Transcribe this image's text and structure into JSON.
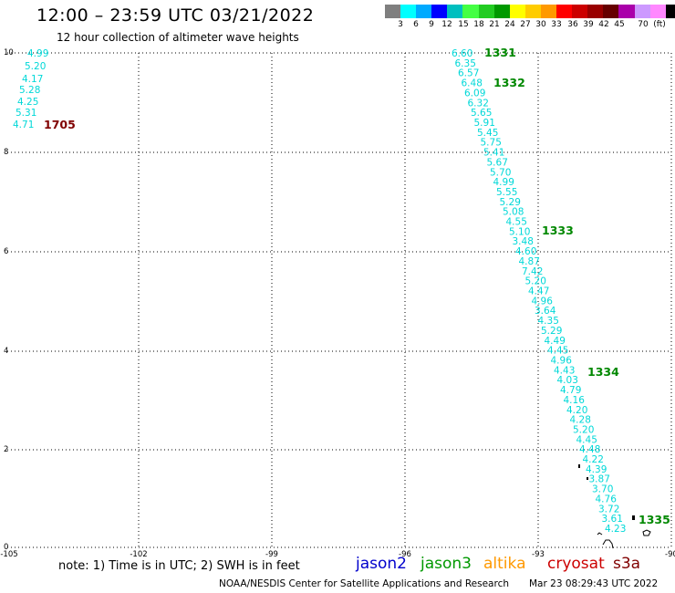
{
  "header": {
    "title": "12:00 – 23:59 UTC 03/21/2022",
    "subtitle": "12 hour collection of altimeter wave heights"
  },
  "colorbar": {
    "swatches": [
      "#7f7f7f",
      "#00ffff",
      "#00aaff",
      "#0000ff",
      "#00bfbf",
      "#44ff44",
      "#22cc22",
      "#009900",
      "#ffff00",
      "#ffcc00",
      "#ff9900",
      "#ff0000",
      "#cc0000",
      "#990000",
      "#660000",
      "#aa00aa",
      "#cc99ff",
      "#ff88ff",
      "#000000"
    ],
    "labels": [
      "3",
      "6",
      "9",
      "12",
      "15",
      "18",
      "21",
      "24",
      "27",
      "30",
      "33",
      "36",
      "39",
      "42",
      "45",
      "70",
      "(ft)"
    ]
  },
  "axes": {
    "x_ticks": [
      "-105",
      "-102",
      "-99",
      "-96",
      "-93",
      "-90"
    ],
    "y_ticks": [
      "10",
      "8",
      "6",
      "4",
      "2",
      "0"
    ]
  },
  "passes": [
    {
      "id": "1705",
      "color": "#800000"
    },
    {
      "id": "1331",
      "color": "#008800"
    },
    {
      "id": "1332",
      "color": "#008800"
    },
    {
      "id": "1333",
      "color": "#008800"
    },
    {
      "id": "1334",
      "color": "#008800"
    },
    {
      "id": "1335",
      "color": "#008800"
    }
  ],
  "measurements_left": [
    "4.99",
    "5.20",
    "4.17",
    "5.28",
    "4.25",
    "5.31",
    "4.71"
  ],
  "measurements_main": [
    "6.60",
    "6.35",
    "6.57",
    "6.48",
    "6.09",
    "6.32",
    "5.65",
    "5.91",
    "5.45",
    "5.75",
    "5.41",
    "5.67",
    "5.70",
    "4.99",
    "5.55",
    "5.29",
    "5.08",
    "4.55",
    "5.10",
    "3.48",
    "4.60",
    "4.87",
    "7.42",
    "5.20",
    "4.47",
    "4.96",
    "3.64",
    "4.35",
    "5.29",
    "4.49",
    "4.45",
    "4.96",
    "4.43",
    "4.03",
    "4.79",
    "4.16",
    "4.20",
    "4.28",
    "5.20",
    "4.45",
    "4.48",
    "4.22",
    "4.39",
    "3.87",
    "3.70",
    "4.76",
    "3.72",
    "3.61",
    "4.23"
  ],
  "footer": {
    "note": "note: 1) Time is in UTC; 2) SWH is in feet",
    "legend": [
      {
        "label": "jason2",
        "color": "#0000cc"
      },
      {
        "label": "jason3",
        "color": "#009900"
      },
      {
        "label": "altika",
        "color": "#ff9900"
      },
      {
        "label": "cryosat",
        "color": "#cc0000"
      },
      {
        "label": "s3a",
        "color": "#800000"
      }
    ],
    "credit": "NOAA/NESDIS Center for Satellite Applications and Research",
    "timestamp": "Mar 23 08:29:43 UTC 2022"
  }
}
